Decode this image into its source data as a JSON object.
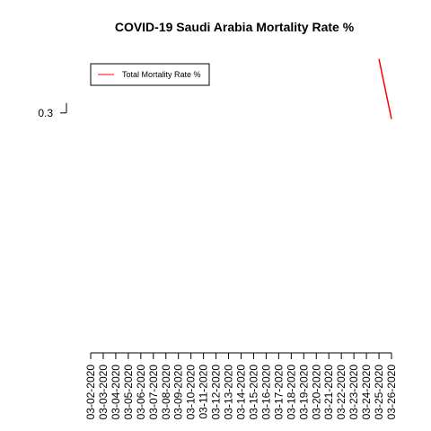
{
  "chart_data": {
    "type": "line",
    "title": "COVID-19 Saudi Arabia Mortality Rate %",
    "xlabel": "",
    "ylabel": "",
    "categories": [
      "03-02-2020",
      "03-03-2020",
      "03-04-2020",
      "03-05-2020",
      "03-06-2020",
      "03-07-2020",
      "03-08-2020",
      "03-09-2020",
      "03-10-2020",
      "03-11-2020",
      "03-12-2020",
      "03-13-2020",
      "03-14-2020",
      "03-15-2020",
      "03-16-2020",
      "03-17-2020",
      "03-18-2020",
      "03-19-2020",
      "03-20-2020",
      "03-21-2020",
      "03-22-2020",
      "03-23-2020",
      "03-24-2020",
      "03-25-2020",
      "03-26-2020"
    ],
    "yticks": [
      "0.3"
    ],
    "ylim": [
      0.28,
      0.305
    ],
    "series": [
      {
        "name": "Total Mortality Rate %",
        "color": "#ff0000",
        "x": [
          "03-25-2020",
          "03-26-2020"
        ],
        "values": [
          0.3045,
          0.2995
        ]
      }
    ],
    "legend": "top-left",
    "grid": false
  }
}
